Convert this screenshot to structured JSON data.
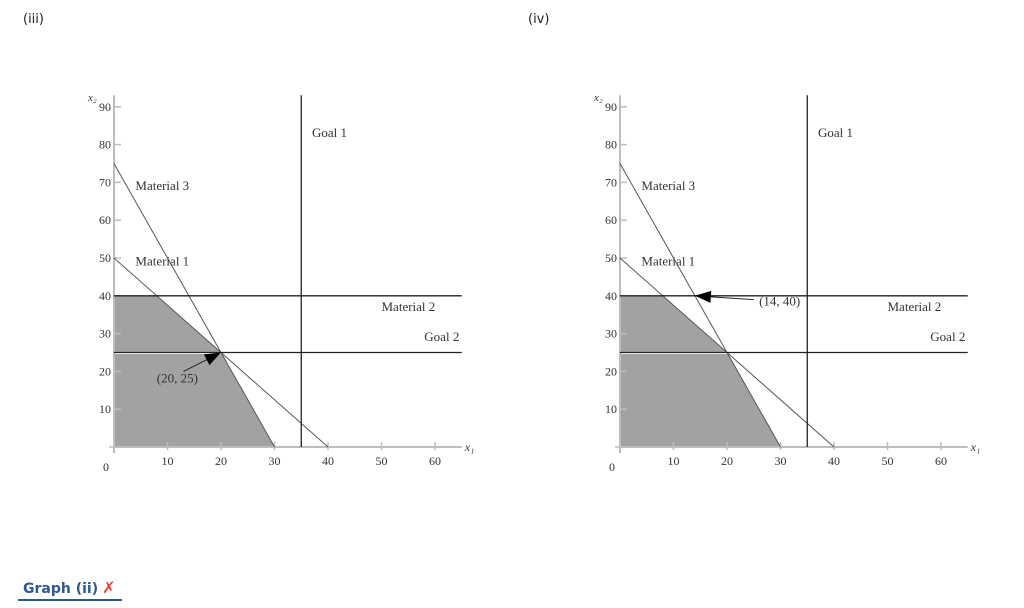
{
  "panels": [
    {
      "label": "(iii)"
    },
    {
      "label": "(iv)"
    }
  ],
  "footer": {
    "link_label": "Graph (ii)",
    "status_icon": "x-mark-icon",
    "status_color": "#e8413a",
    "link_color": "#2c5a8c"
  },
  "colors": {
    "feasible_fill": "#a2a2a2",
    "axis": "#bdbdbd",
    "line": "#555555",
    "text": "#333333"
  },
  "chart_data": [
    {
      "type": "line",
      "title": "(iii)",
      "xlabel": "x1",
      "ylabel": "x2",
      "xlim": [
        0,
        65
      ],
      "ylim": [
        0,
        92
      ],
      "x_ticks": [
        10,
        20,
        30,
        40,
        50,
        60
      ],
      "y_ticks": [
        10,
        20,
        30,
        40,
        50,
        60,
        70,
        80,
        90
      ],
      "origin_label": "0",
      "grid": false,
      "constraints": [
        {
          "name": "Material 3",
          "from": [
            0,
            75
          ],
          "to": [
            30,
            0
          ],
          "label_at": [
            4,
            68
          ]
        },
        {
          "name": "Material 1",
          "from": [
            0,
            50
          ],
          "to": [
            40,
            0
          ],
          "label_at": [
            4,
            48
          ]
        },
        {
          "name": "Material 2",
          "type": "horizontal",
          "y": 40,
          "label_at": [
            50,
            36
          ]
        },
        {
          "name": "Goal 2",
          "type": "horizontal",
          "y": 25,
          "label_at": [
            58,
            28
          ]
        },
        {
          "name": "Goal 1",
          "type": "vertical",
          "x": 35,
          "label_at": [
            37,
            82
          ]
        }
      ],
      "feasible_region": [
        [
          0,
          0
        ],
        [
          0,
          40
        ],
        [
          8,
          40
        ],
        [
          20,
          25
        ],
        [
          30,
          0
        ]
      ],
      "annotation": {
        "text": "(20, 25)",
        "point": [
          20,
          25
        ],
        "text_at": [
          8,
          17
        ],
        "tail": [
          13,
          20
        ]
      }
    },
    {
      "type": "line",
      "title": "(iv)",
      "xlabel": "x1",
      "ylabel": "x2",
      "xlim": [
        0,
        65
      ],
      "ylim": [
        0,
        92
      ],
      "x_ticks": [
        10,
        20,
        30,
        40,
        50,
        60
      ],
      "y_ticks": [
        10,
        20,
        30,
        40,
        50,
        60,
        70,
        80,
        90
      ],
      "origin_label": "0",
      "grid": false,
      "constraints": [
        {
          "name": "Material 3",
          "from": [
            0,
            75
          ],
          "to": [
            30,
            0
          ],
          "label_at": [
            4,
            68
          ]
        },
        {
          "name": "Material 1",
          "from": [
            0,
            50
          ],
          "to": [
            40,
            0
          ],
          "label_at": [
            4,
            48
          ]
        },
        {
          "name": "Material 2",
          "type": "horizontal",
          "y": 40,
          "label_at": [
            50,
            36
          ]
        },
        {
          "name": "Goal 2",
          "type": "horizontal",
          "y": 25,
          "label_at": [
            58,
            28
          ]
        },
        {
          "name": "Goal 1",
          "type": "vertical",
          "x": 35,
          "label_at": [
            37,
            82
          ]
        }
      ],
      "feasible_region": [
        [
          0,
          0
        ],
        [
          0,
          40
        ],
        [
          8,
          40
        ],
        [
          20,
          25
        ],
        [
          30,
          0
        ]
      ],
      "annotation": {
        "text": "(14, 40)",
        "point": [
          14,
          40
        ],
        "text_at": [
          26,
          37.5
        ],
        "tail": [
          25,
          39
        ]
      }
    }
  ]
}
